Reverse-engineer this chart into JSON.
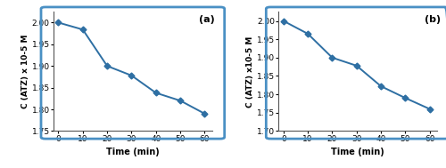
{
  "panel_a": {
    "x": [
      0,
      10,
      20,
      30,
      40,
      50,
      60
    ],
    "y": [
      2.0,
      1.984,
      1.9,
      1.878,
      1.838,
      1.82,
      1.79
    ],
    "label": "(a)",
    "ylabel": "C (ATZ) x 10-5 M",
    "xlabel": "Time (min)",
    "ylim": [
      1.75,
      2.025
    ],
    "yticks": [
      1.75,
      1.8,
      1.85,
      1.9,
      1.95,
      2.0
    ],
    "xticks": [
      0,
      10,
      20,
      30,
      40,
      50,
      60
    ],
    "xlim": [
      -2,
      63
    ]
  },
  "panel_b": {
    "x": [
      0,
      10,
      20,
      30,
      40,
      50,
      60
    ],
    "y": [
      2.0,
      1.965,
      1.9,
      1.878,
      1.822,
      1.79,
      1.76
    ],
    "label": "(b)",
    "ylabel": "C (ATZ) x10-5 M",
    "xlabel": "Time (min)",
    "ylim": [
      1.7,
      2.025
    ],
    "yticks": [
      1.7,
      1.75,
      1.8,
      1.85,
      1.9,
      1.95,
      2.0
    ],
    "xticks": [
      0,
      10,
      20,
      30,
      40,
      50,
      60
    ],
    "xlim": [
      -2,
      63
    ]
  },
  "line_color": "#2E6FA3",
  "marker": "D",
  "marker_size": 3.5,
  "line_width": 1.4,
  "plot_bg": "#ffffff",
  "border_color": "#4A7FB5",
  "fig_bg": "#ffffff",
  "outer_border_color": "#4A90C4"
}
